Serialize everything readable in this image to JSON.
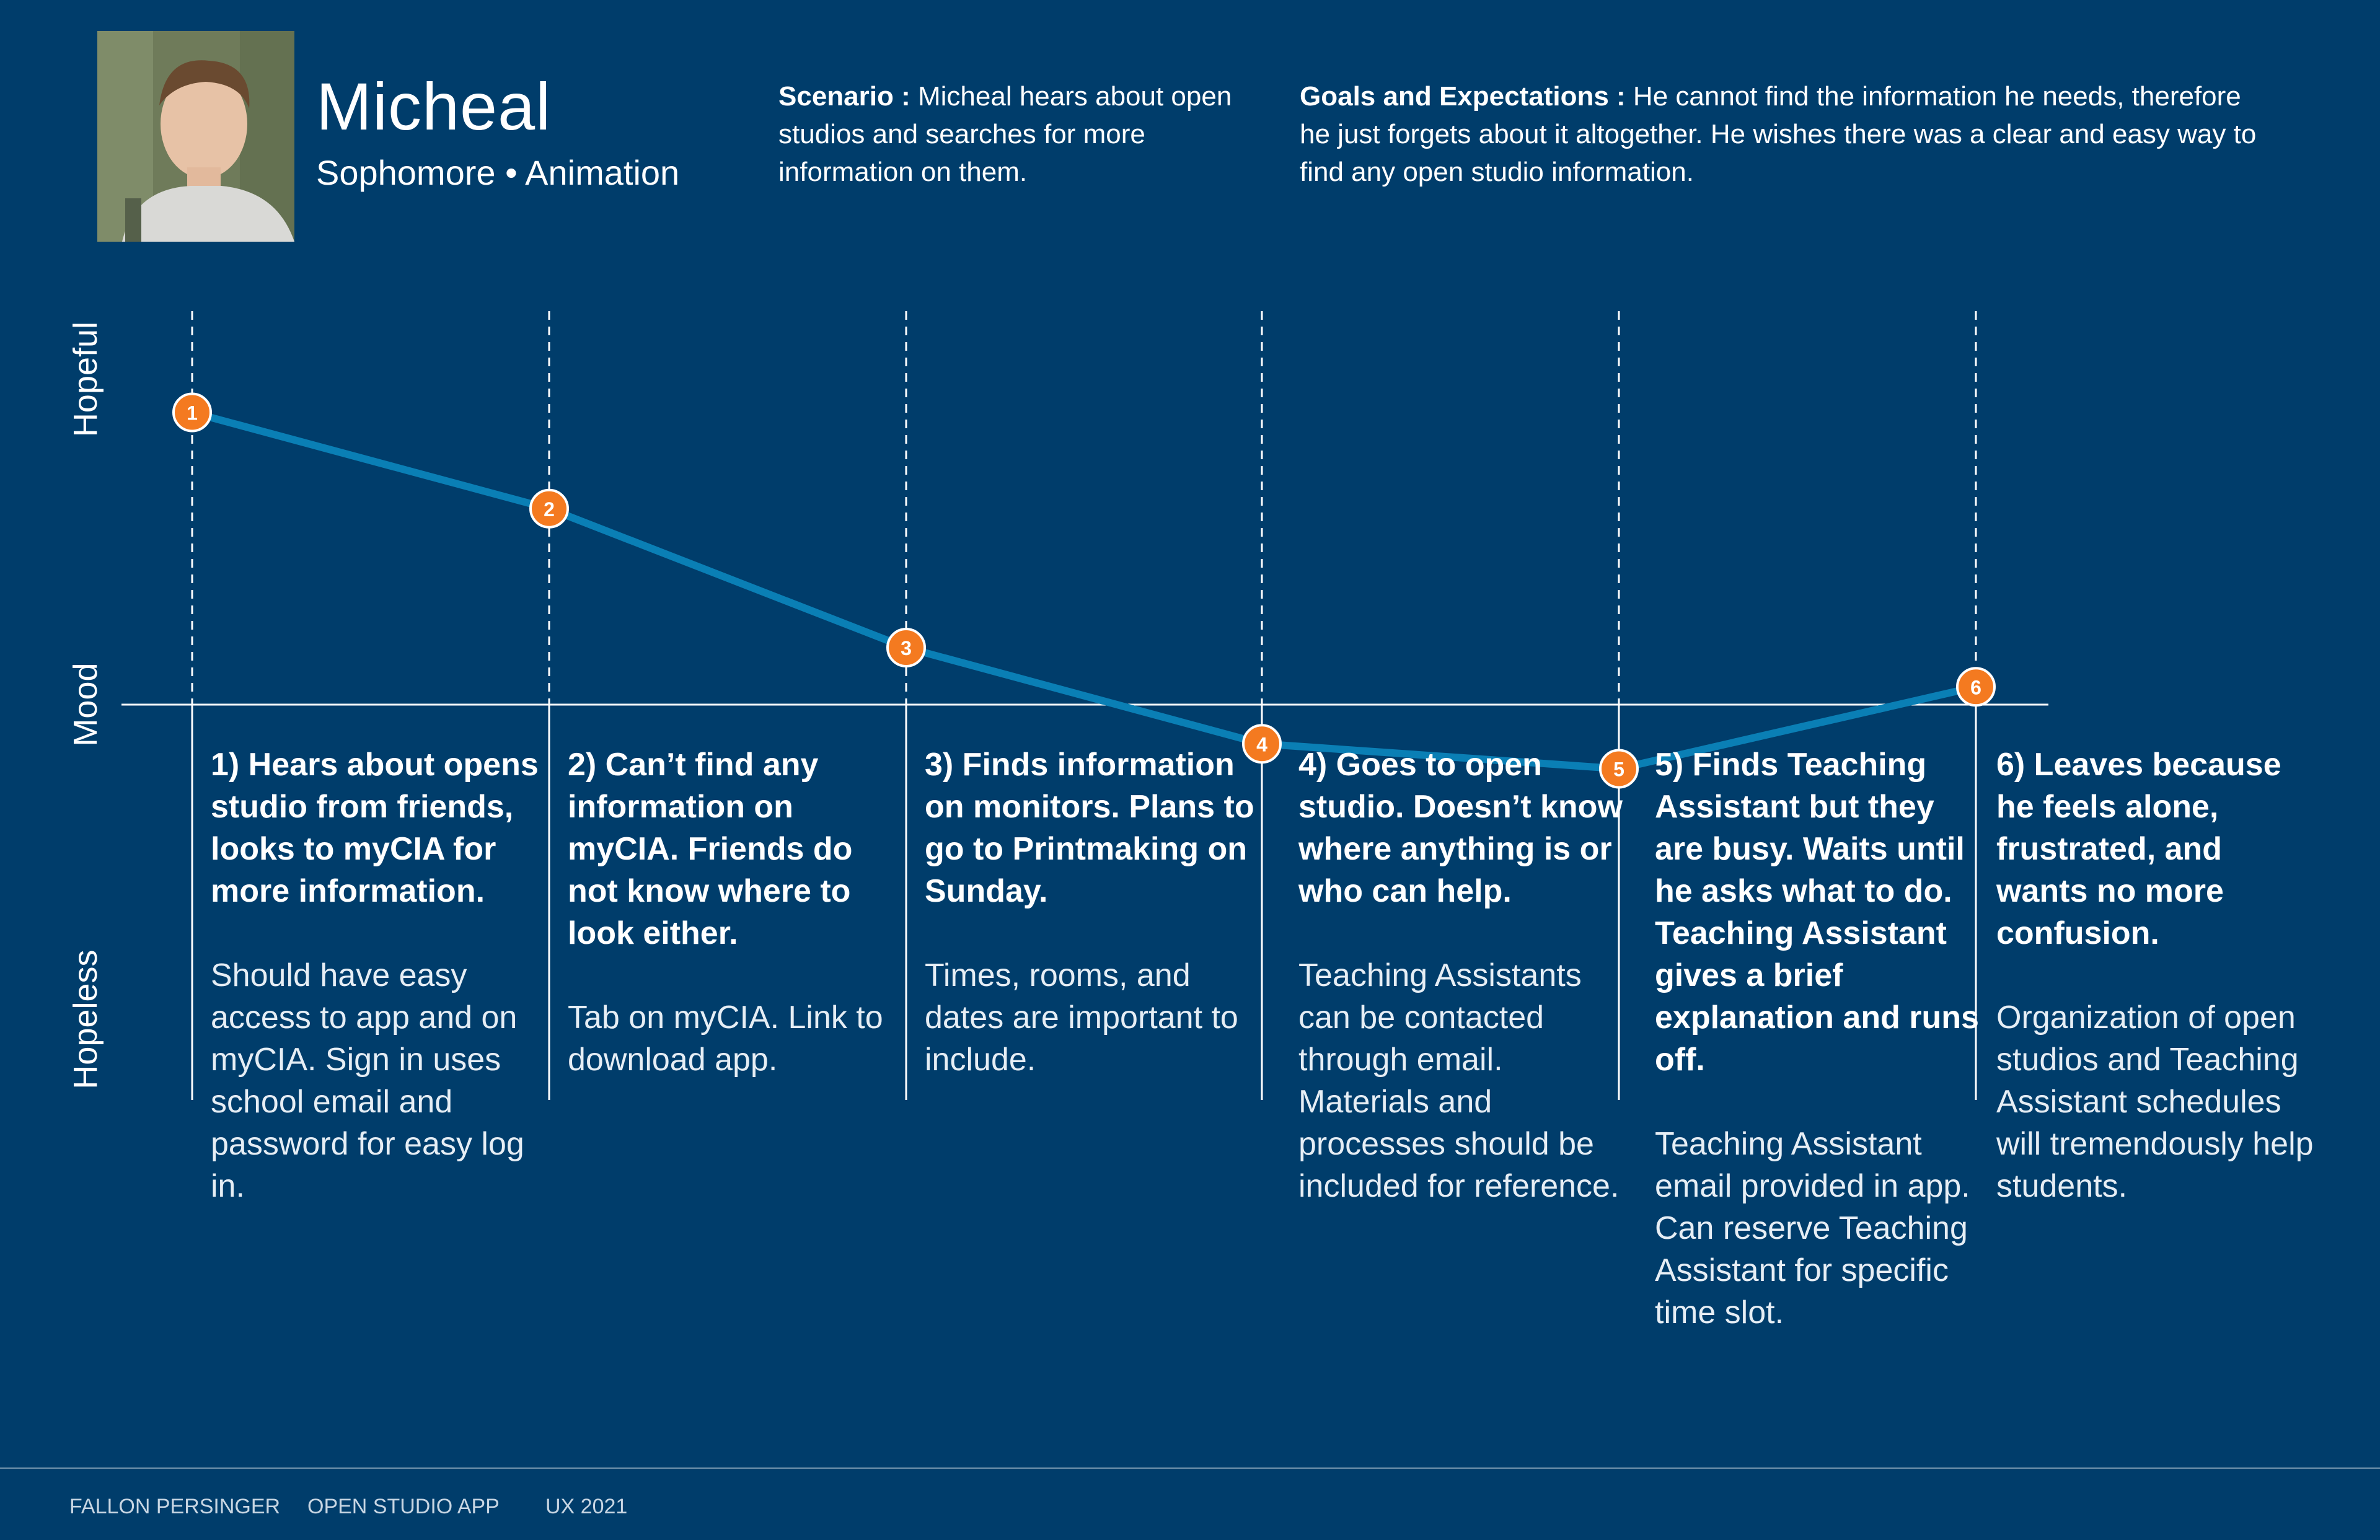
{
  "persona": {
    "name": "Micheal",
    "role": "Sophomore • Animation"
  },
  "header": {
    "scenario_label": "Scenario :",
    "scenario_text": " Micheal hears about open studios and searches for more information on them.",
    "goals_label": "Goals and Expectations :",
    "goals_text": " He cannot find the information he needs, therefore he just forgets about it altogether. He wishes there was a clear and easy way to find any open studio information."
  },
  "axis": {
    "top": "Hopeful",
    "middle": "Mood",
    "bottom": "Hopeless"
  },
  "journey": {
    "points": [
      {
        "label": "1",
        "mood": 0.82
      },
      {
        "label": "2",
        "mood": 0.55
      },
      {
        "label": "3",
        "mood": 0.16
      },
      {
        "label": "4",
        "mood": -0.11
      },
      {
        "label": "5",
        "mood": -0.18
      },
      {
        "label": "6",
        "mood": 0.05
      }
    ],
    "colors": {
      "line": "#0a7fb5",
      "marker": "#f47a20",
      "baseline": "#ffffff"
    }
  },
  "steps": [
    {
      "title": "1) Hears about opens studio from friends, looks to myCIA for more information.",
      "note": "Should have easy access to app and on myCIA. Sign in uses school email and password for easy log in."
    },
    {
      "title": "2) Can’t find any information on myCIA. Friends do not know where to look either.",
      "note": "Tab on myCIA. Link to download app."
    },
    {
      "title": "3) Finds information on monitors. Plans to go to Printmaking on Sunday.",
      "note": "Times, rooms, and dates are important to include."
    },
    {
      "title": "4) Goes to open studio. Doesn’t know where anything is or who can help.",
      "note": "Teaching Assistants can be contacted through email. Materials and processes should be included for reference."
    },
    {
      "title": "5) Finds Teaching Assistant but they are busy. Waits until he asks what to do. Teaching Assistant gives a brief explanation and runs off.",
      "note": "Teaching Assistant email provided in app. Can reserve Teaching Assistant for specific time slot."
    },
    {
      "title": "6) Leaves because he feels alone, frustrated, and wants no more confusion.",
      "note": "Organization of open studios and Teaching Assistant schedules will tremendously help students."
    }
  ],
  "footer": {
    "author": "FALLON PERSINGER",
    "project": "OPEN STUDIO APP",
    "course": "UX 2021"
  }
}
